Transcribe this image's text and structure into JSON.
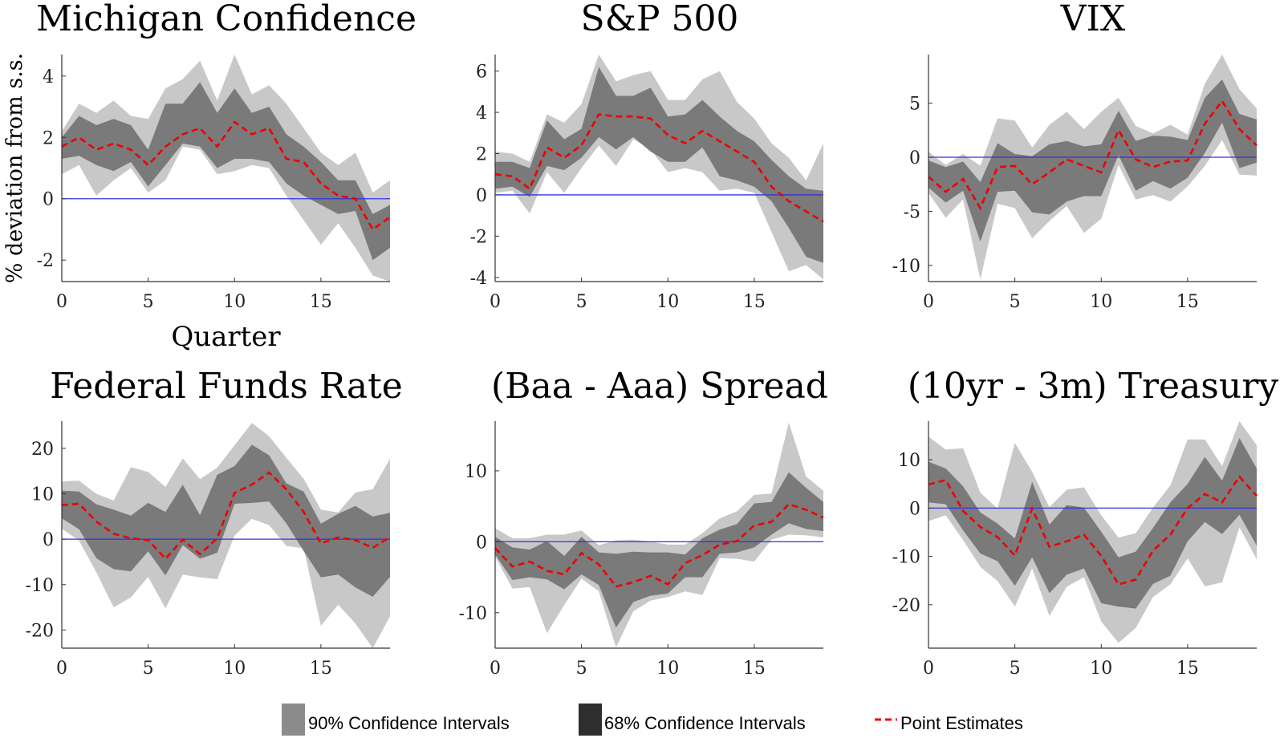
{
  "colors": {
    "ci90": "#c8c8c8",
    "ci68": "#7a7a7a",
    "point_estimate": "#ee0000",
    "zero_line": "#3333dd",
    "axis": "#333333",
    "legend_ci90_swatch": "#8c8c8c",
    "legend_ci68_swatch": "#2e2e2e"
  },
  "legend": {
    "ci90": "90% Confidence Intervals",
    "ci68": "68% Confidence Intervals",
    "point": "Point Estimates"
  },
  "chart_data": [
    {
      "type": "area",
      "title": "Michigan Confidence",
      "xlabel": "Quarter",
      "ylabel": "% deviation from s.s.",
      "xlim": [
        0,
        19
      ],
      "ylim": [
        -2.7,
        4.7
      ],
      "xticks": [
        0,
        5,
        10,
        15
      ],
      "yticks": [
        -2,
        0,
        2,
        4
      ],
      "ytick_labels": [
        "-2",
        "0",
        "2",
        "4"
      ],
      "x": [
        0,
        1,
        2,
        3,
        4,
        5,
        6,
        7,
        8,
        9,
        10,
        11,
        12,
        13,
        14,
        15,
        16,
        17,
        18,
        19
      ],
      "point": [
        1.7,
        2.0,
        1.6,
        1.8,
        1.6,
        1.1,
        1.7,
        2.1,
        2.3,
        1.7,
        2.5,
        2.1,
        2.3,
        1.3,
        1.2,
        0.5,
        0.1,
        0.0,
        -1.0,
        -0.6
      ],
      "ci68_lower": [
        1.3,
        1.4,
        1.1,
        0.9,
        1.2,
        0.4,
        1.1,
        1.8,
        1.7,
        1.0,
        1.3,
        1.3,
        1.2,
        0.5,
        0.1,
        -0.2,
        -0.5,
        -0.4,
        -2.0,
        -1.6
      ],
      "ci68_upper": [
        2.0,
        2.7,
        2.4,
        2.6,
        2.4,
        1.6,
        3.1,
        3.1,
        3.8,
        2.8,
        3.6,
        2.8,
        3.0,
        2.1,
        1.7,
        1.2,
        0.6,
        0.6,
        -0.5,
        -0.2
      ],
      "ci90_lower": [
        0.8,
        1.1,
        0.1,
        0.6,
        1.0,
        0.2,
        0.6,
        1.7,
        1.6,
        0.8,
        0.9,
        1.1,
        1.0,
        0.1,
        -0.7,
        -1.5,
        -0.8,
        -1.6,
        -2.5,
        -2.7
      ],
      "ci90_upper": [
        2.2,
        3.1,
        2.8,
        3.2,
        2.7,
        2.6,
        3.6,
        3.9,
        4.5,
        3.2,
        4.7,
        3.4,
        3.7,
        3.1,
        2.3,
        1.5,
        1.1,
        1.5,
        0.2,
        0.6
      ]
    },
    {
      "type": "area",
      "title": "S&P 500",
      "xlabel": "",
      "ylabel": "",
      "xlim": [
        0,
        19
      ],
      "ylim": [
        -4.2,
        6.8
      ],
      "xticks": [
        0,
        5,
        10,
        15
      ],
      "yticks": [
        -4,
        -2,
        0,
        2,
        4,
        6
      ],
      "ytick_labels": [
        "-4",
        "-2",
        "0",
        "2",
        "4",
        "6"
      ],
      "x": [
        0,
        1,
        2,
        3,
        4,
        5,
        6,
        7,
        8,
        9,
        10,
        11,
        12,
        13,
        14,
        15,
        16,
        17,
        18,
        19
      ],
      "point": [
        1.0,
        0.9,
        0.3,
        2.3,
        1.8,
        2.4,
        3.9,
        3.8,
        3.8,
        3.7,
        2.9,
        2.5,
        3.1,
        2.6,
        2.1,
        1.6,
        0.4,
        -0.3,
        -0.8,
        -1.3
      ],
      "ci68_lower": [
        0.3,
        0.4,
        -0.1,
        1.4,
        1.2,
        1.8,
        2.8,
        2.2,
        2.8,
        2.1,
        1.6,
        1.6,
        2.3,
        0.9,
        0.7,
        0.4,
        -0.3,
        -1.6,
        -3.0,
        -3.3
      ],
      "ci68_upper": [
        1.6,
        1.6,
        1.3,
        3.6,
        2.7,
        3.2,
        6.2,
        4.8,
        4.8,
        5.2,
        3.8,
        3.9,
        4.6,
        3.8,
        3.1,
        2.6,
        1.7,
        0.9,
        0.3,
        0.2
      ],
      "ci90_lower": [
        0.1,
        0.2,
        -0.9,
        1.1,
        0.1,
        1.3,
        2.4,
        1.4,
        2.7,
        2.2,
        1.1,
        1.3,
        1.1,
        0.2,
        0.3,
        0.1,
        -1.8,
        -3.7,
        -3.4,
        -4.1
      ],
      "ci90_upper": [
        2.1,
        2.0,
        1.6,
        3.9,
        3.5,
        4.4,
        6.8,
        5.5,
        5.8,
        6.0,
        4.6,
        4.6,
        5.6,
        6.0,
        4.5,
        3.7,
        2.5,
        1.8,
        0.7,
        2.5
      ]
    },
    {
      "type": "area",
      "title": "VIX",
      "xlabel": "",
      "ylabel": "",
      "xlim": [
        0,
        19
      ],
      "ylim": [
        -11.5,
        9.5
      ],
      "xticks": [
        0,
        5,
        10,
        15
      ],
      "yticks": [
        -10,
        -5,
        0,
        5
      ],
      "ytick_labels": [
        "-10",
        "-5",
        "0",
        "5"
      ],
      "x": [
        0,
        1,
        2,
        3,
        4,
        5,
        6,
        7,
        8,
        9,
        10,
        11,
        12,
        13,
        14,
        15,
        16,
        17,
        18,
        19
      ],
      "point": [
        -1.8,
        -3.2,
        -2.0,
        -4.7,
        -0.9,
        -0.8,
        -2.5,
        -1.4,
        -0.2,
        -0.8,
        -1.4,
        2.5,
        -0.2,
        -0.9,
        -0.4,
        -0.3,
        3.1,
        5.2,
        2.6,
        1.1
      ],
      "ci68_lower": [
        -2.8,
        -4.2,
        -3.1,
        -7.8,
        -3.2,
        -3.1,
        -5.1,
        -5.3,
        -4.1,
        -3.6,
        -3.6,
        0.2,
        -3.1,
        -2.2,
        -2.9,
        -1.9,
        0.4,
        3.2,
        -1.0,
        -0.5
      ],
      "ci68_upper": [
        -0.3,
        -0.9,
        -0.4,
        -2.3,
        1.3,
        0.3,
        0.1,
        1.2,
        1.5,
        1.0,
        1.2,
        4.3,
        1.5,
        2.0,
        1.9,
        1.6,
        5.5,
        7.2,
        4.0,
        3.5
      ],
      "ci90_lower": [
        -3.3,
        -5.6,
        -3.9,
        -11.3,
        -4.3,
        -4.7,
        -7.5,
        -5.9,
        -4.5,
        -7.0,
        -5.7,
        -0.7,
        -3.9,
        -3.5,
        -4.1,
        -2.7,
        -0.8,
        1.6,
        -1.6,
        -1.7
      ],
      "ci90_upper": [
        0.5,
        -0.7,
        0.3,
        -0.8,
        3.6,
        3.4,
        0.9,
        3.0,
        4.2,
        2.6,
        4.2,
        5.5,
        2.9,
        2.2,
        3.0,
        2.1,
        6.8,
        9.5,
        6.3,
        4.5
      ]
    },
    {
      "type": "area",
      "title": "Federal Funds Rate",
      "xlabel": "",
      "ylabel": "",
      "xlim": [
        0,
        19
      ],
      "ylim": [
        -24,
        26
      ],
      "xticks": [
        0,
        5,
        10,
        15
      ],
      "yticks": [
        -20,
        -10,
        0,
        10,
        20
      ],
      "ytick_labels": [
        "-20",
        "-10",
        "0",
        "10",
        "20"
      ],
      "x": [
        0,
        1,
        2,
        3,
        4,
        5,
        6,
        7,
        8,
        9,
        10,
        11,
        12,
        13,
        14,
        15,
        16,
        17,
        18,
        19
      ],
      "point": [
        7.5,
        7.8,
        3.9,
        1.2,
        0.2,
        -0.2,
        -4.3,
        -0.1,
        -3.3,
        0.2,
        10.2,
        12.0,
        14.7,
        11.0,
        6.0,
        -0.9,
        0.4,
        -0.2,
        -1.9,
        0.5
      ],
      "ci68_lower": [
        4.6,
        2.2,
        -4.2,
        -6.6,
        -7.1,
        -2.7,
        -8.0,
        -1.3,
        -4.3,
        -3.0,
        7.8,
        8.0,
        8.3,
        3.5,
        -2.6,
        -8.4,
        -7.8,
        -10.6,
        -12.7,
        -8.3
      ],
      "ci68_upper": [
        10.7,
        10.5,
        7.7,
        6.5,
        5.2,
        8.0,
        6.0,
        12.0,
        5.3,
        14.2,
        16.1,
        20.8,
        18.5,
        12.3,
        10.5,
        3.4,
        5.6,
        7.3,
        5.0,
        5.8
      ],
      "ci90_lower": [
        2.3,
        -0.3,
        -7.3,
        -15.0,
        -12.8,
        -8.3,
        -15.2,
        -7.8,
        -8.4,
        -8.8,
        0.8,
        4.5,
        3.1,
        -1.5,
        -2.0,
        -19.1,
        -14.4,
        -18.6,
        -24.0,
        -17.0
      ],
      "ci90_upper": [
        12.7,
        12.9,
        10.0,
        8.5,
        15.9,
        14.8,
        11.5,
        17.8,
        13.2,
        15.8,
        20.7,
        25.6,
        22.7,
        17.9,
        13.3,
        6.5,
        5.9,
        10.3,
        11.0,
        17.7
      ]
    },
    {
      "type": "area",
      "title": "(Baa - Aaa) Spread",
      "xlabel": "",
      "ylabel": "",
      "xlim": [
        0,
        19
      ],
      "ylim": [
        -15,
        17
      ],
      "xticks": [
        0,
        5,
        10,
        15
      ],
      "yticks": [
        -10,
        0,
        10
      ],
      "ytick_labels": [
        "-10",
        "0",
        "10"
      ],
      "x": [
        0,
        1,
        2,
        3,
        4,
        5,
        6,
        7,
        8,
        9,
        10,
        11,
        12,
        13,
        14,
        15,
        16,
        17,
        18,
        19
      ],
      "point": [
        -0.9,
        -3.5,
        -2.8,
        -4.1,
        -4.6,
        -1.6,
        -3.2,
        -6.3,
        -5.7,
        -4.8,
        -6.0,
        -3.0,
        -1.9,
        -0.4,
        0.1,
        2.3,
        2.8,
        5.3,
        4.5,
        3.4
      ],
      "ci68_lower": [
        -1.8,
        -5.4,
        -5.0,
        -5.3,
        -6.7,
        -4.6,
        -6.1,
        -12.1,
        -8.5,
        -7.6,
        -7.3,
        -5.0,
        -5.0,
        -1.7,
        -1.5,
        -0.8,
        1.0,
        2.6,
        1.8,
        1.5
      ],
      "ci68_upper": [
        0.7,
        -0.8,
        -1.1,
        0.1,
        -2.0,
        0.7,
        -1.5,
        -1.7,
        -1.4,
        -1.5,
        -1.5,
        -1.8,
        0.5,
        1.7,
        2.5,
        5.4,
        5.6,
        9.8,
        7.6,
        5.6
      ],
      "ci90_lower": [
        -2.1,
        -6.6,
        -6.4,
        -12.9,
        -8.9,
        -5.2,
        -7.0,
        -14.9,
        -9.8,
        -8.3,
        -7.8,
        -7.0,
        -7.5,
        -2.3,
        -2.4,
        -2.8,
        0.3,
        1.0,
        0.9,
        0.6
      ],
      "ci90_upper": [
        1.9,
        0.5,
        0.5,
        1.0,
        1.0,
        1.6,
        -0.5,
        0.2,
        0.3,
        0.0,
        -0.4,
        -0.4,
        1.2,
        3.3,
        4.3,
        6.6,
        6.8,
        16.8,
        9.2,
        7.2
      ]
    },
    {
      "type": "area",
      "title": "(10yr - 3m) Treasury",
      "xlabel": "",
      "ylabel": "",
      "xlim": [
        0,
        19
      ],
      "ylim": [
        -29,
        18
      ],
      "xticks": [
        0,
        5,
        10,
        15
      ],
      "yticks": [
        -20,
        -10,
        0,
        10
      ],
      "ytick_labels": [
        "-20",
        "-10",
        "0",
        "10"
      ],
      "x": [
        0,
        1,
        2,
        3,
        4,
        5,
        6,
        7,
        8,
        9,
        10,
        11,
        12,
        13,
        14,
        15,
        16,
        17,
        18,
        19
      ],
      "point": [
        4.9,
        5.8,
        -0.6,
        -3.9,
        -6.0,
        -9.8,
        -0.1,
        -8.0,
        -6.9,
        -5.5,
        -9.9,
        -15.8,
        -14.8,
        -8.8,
        -5.5,
        0.0,
        2.9,
        1.2,
        6.5,
        2.5
      ],
      "ci68_lower": [
        1.2,
        0.8,
        -4.6,
        -9.4,
        -11.0,
        -16.1,
        -10.2,
        -17.6,
        -13.8,
        -12.5,
        -19.7,
        -20.4,
        -20.8,
        -15.7,
        -14.0,
        -6.9,
        -2.9,
        -5.4,
        -1.4,
        -7.8
      ],
      "ci68_upper": [
        9.6,
        8.2,
        4.5,
        -0.9,
        -3.2,
        -6.3,
        5.4,
        -3.4,
        0.6,
        0.1,
        -4.9,
        -10.2,
        -9.0,
        -4.1,
        1.2,
        5.0,
        10.6,
        5.7,
        14.5,
        8.2
      ],
      "ci90_lower": [
        -2.7,
        -1.5,
        -6.6,
        -12.2,
        -15.1,
        -20.4,
        -12.5,
        -22.3,
        -16.3,
        -14.3,
        -23.5,
        -27.9,
        -24.8,
        -18.4,
        -15.8,
        -10.4,
        -16.2,
        -15.4,
        -4.0,
        -10.6
      ],
      "ci90_upper": [
        14.8,
        12.1,
        12.4,
        3.2,
        -0.1,
        13.5,
        7.5,
        0.2,
        3.8,
        4.3,
        -1.5,
        -6.1,
        -5.2,
        0.1,
        4.7,
        14.2,
        14.2,
        8.7,
        18.0,
        13.0
      ]
    }
  ]
}
